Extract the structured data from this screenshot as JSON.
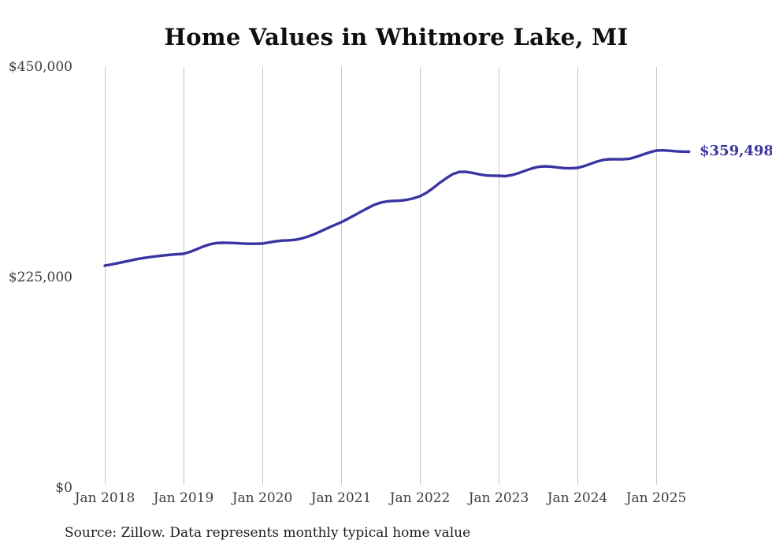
{
  "page": {
    "title": "Home Values in Whitmore Lake, MI",
    "source_note": "Source: Zillow. Data represents monthly typical home value"
  },
  "chart_data": {
    "type": "line",
    "title": "Home Values in Whitmore Lake, MI",
    "xlabel": "",
    "ylabel": "",
    "x_tick_labels": [
      "Jan 2018",
      "Jan 2019",
      "Jan 2020",
      "Jan 2021",
      "Jan 2022",
      "Jan 2023",
      "Jan 2024",
      "Jan 2025"
    ],
    "y_ticks": [
      450000,
      225000,
      0
    ],
    "y_tick_labels": [
      "$450,000",
      "$225,000",
      "$0"
    ],
    "ylim": [
      0,
      450000
    ],
    "grid": "vertical-only",
    "legend_position": "none",
    "line_color": "#3a34a3",
    "gridline_color": "#c6c6c6",
    "source": "Source: Zillow. Data represents monthly typical home value",
    "series": [
      {
        "name": "Monthly typical home value",
        "start_month": "2018-01",
        "end_month": "2025-06",
        "months_per_point": 1,
        "values": [
          237600,
          238900,
          240300,
          241800,
          243300,
          244700,
          245900,
          246900,
          247800,
          248600,
          249300,
          249900,
          250300,
          252400,
          255200,
          258100,
          260400,
          261800,
          262100,
          262000,
          261700,
          261300,
          261100,
          261100,
          261200,
          262400,
          263600,
          264400,
          264700,
          265300,
          266700,
          268800,
          271500,
          274600,
          277900,
          281000,
          284000,
          287500,
          291300,
          295200,
          299000,
          302500,
          305000,
          306300,
          306900,
          307200,
          308000,
          309600,
          311800,
          315500,
          320500,
          326000,
          331000,
          335500,
          337800,
          337900,
          336800,
          335300,
          334200,
          333800,
          333700,
          333300,
          334500,
          336500,
          339000,
          341500,
          343200,
          343800,
          343500,
          342600,
          341900,
          341800,
          342100,
          344000,
          346500,
          349000,
          350800,
          351400,
          351500,
          351300,
          352000,
          354000,
          356500,
          358800,
          360700,
          360900,
          360500,
          359900,
          359600,
          359498
        ],
        "last_value": 359498,
        "last_value_label": "$359,498"
      }
    ]
  }
}
